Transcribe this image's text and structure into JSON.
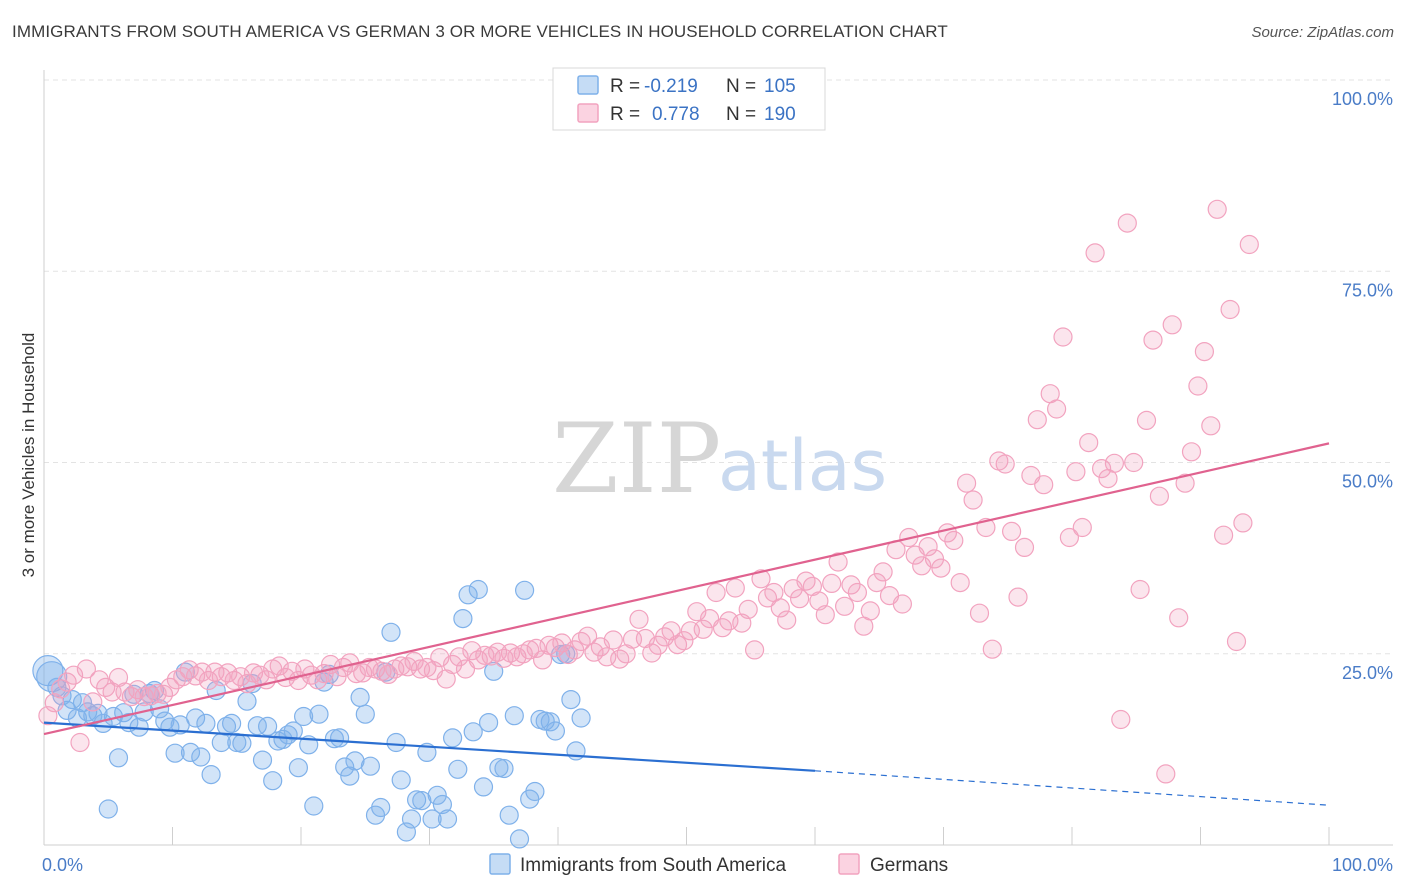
{
  "header": {
    "title": "IMMIGRANTS FROM SOUTH AMERICA VS GERMAN 3 OR MORE VEHICLES IN HOUSEHOLD CORRELATION CHART",
    "source": "Source: ZipAtlas.com"
  },
  "watermark": {
    "zip": "ZIP",
    "atlas": "atlas"
  },
  "legend": {
    "rows": [
      {
        "r_label": "R =",
        "r_value": "-0.219",
        "n_label": "N =",
        "n_value": "105",
        "color": "#7fb1ea"
      },
      {
        "r_label": "R =",
        "r_value": "0.778",
        "n_label": "N =",
        "n_value": "190",
        "color": "#f2a3bf"
      }
    ]
  },
  "chart_data": {
    "type": "scatter",
    "title": "IMMIGRANTS FROM SOUTH AMERICA VS GERMAN 3 OR MORE VEHICLES IN HOUSEHOLD CORRELATION CHART",
    "xlabel": "",
    "ylabel": "3 or more Vehicles in Household",
    "xlim": [
      0,
      100
    ],
    "ylim": [
      0,
      100
    ],
    "x_tick_labels": [
      "0.0%",
      "100.0%"
    ],
    "y_ticks": [
      25,
      50,
      75,
      100
    ],
    "y_tick_labels": [
      "25.0%",
      "50.0%",
      "75.0%",
      "100.0%"
    ],
    "grid": true,
    "legend_position": "top-center",
    "series": [
      {
        "name": "Immigrants from South America",
        "color": "#7fb1ea",
        "line_color": "#2b6fd1",
        "trend": {
          "x0": 0,
          "y0": 16.0,
          "x1": 60,
          "y1": 9.7,
          "dash_to_x": 100,
          "dash_to_y": 5.2
        },
        "points": [
          [
            0.3,
            22.8
          ],
          [
            0.6,
            22.0
          ],
          [
            1.0,
            20.6
          ],
          [
            1.4,
            19.5
          ],
          [
            1.8,
            17.6
          ],
          [
            2.2,
            19.0
          ],
          [
            2.6,
            16.6
          ],
          [
            3.0,
            18.6
          ],
          [
            3.4,
            17.4
          ],
          [
            3.8,
            16.9
          ],
          [
            4.2,
            17.2
          ],
          [
            4.6,
            15.9
          ],
          [
            5.0,
            4.7
          ],
          [
            5.4,
            16.8
          ],
          [
            5.8,
            11.4
          ],
          [
            6.2,
            17.3
          ],
          [
            6.6,
            16.0
          ],
          [
            7.0,
            19.7
          ],
          [
            7.4,
            15.4
          ],
          [
            7.8,
            17.4
          ],
          [
            8.2,
            19.8
          ],
          [
            8.6,
            20.2
          ],
          [
            9.0,
            17.8
          ],
          [
            9.4,
            16.2
          ],
          [
            9.8,
            15.4
          ],
          [
            10.2,
            12.0
          ],
          [
            10.6,
            15.7
          ],
          [
            11.0,
            22.6
          ],
          [
            11.4,
            12.1
          ],
          [
            11.8,
            16.6
          ],
          [
            12.2,
            11.5
          ],
          [
            12.6,
            15.9
          ],
          [
            13.0,
            9.2
          ],
          [
            13.4,
            20.2
          ],
          [
            13.8,
            13.4
          ],
          [
            14.2,
            15.5
          ],
          [
            14.6,
            15.9
          ],
          [
            15.0,
            13.4
          ],
          [
            15.4,
            13.3
          ],
          [
            15.8,
            18.8
          ],
          [
            16.2,
            21.1
          ],
          [
            16.6,
            15.6
          ],
          [
            17.0,
            11.1
          ],
          [
            17.4,
            15.5
          ],
          [
            17.8,
            8.4
          ],
          [
            18.2,
            13.6
          ],
          [
            18.6,
            13.8
          ],
          [
            19.0,
            14.4
          ],
          [
            19.4,
            14.9
          ],
          [
            19.8,
            10.1
          ],
          [
            20.2,
            16.8
          ],
          [
            20.6,
            13.1
          ],
          [
            21.0,
            5.1
          ],
          [
            21.4,
            17.1
          ],
          [
            21.8,
            21.3
          ],
          [
            22.2,
            22.3
          ],
          [
            22.6,
            13.9
          ],
          [
            23.0,
            14.0
          ],
          [
            23.4,
            10.2
          ],
          [
            23.8,
            9.0
          ],
          [
            24.2,
            11.0
          ],
          [
            24.6,
            19.3
          ],
          [
            25.0,
            17.1
          ],
          [
            25.4,
            10.3
          ],
          [
            25.8,
            3.9
          ],
          [
            26.2,
            4.9
          ],
          [
            26.6,
            22.6
          ],
          [
            27.0,
            27.8
          ],
          [
            27.4,
            13.4
          ],
          [
            27.8,
            8.5
          ],
          [
            28.2,
            1.7
          ],
          [
            28.6,
            3.4
          ],
          [
            29.0,
            5.9
          ],
          [
            29.4,
            5.8
          ],
          [
            29.8,
            12.1
          ],
          [
            30.2,
            3.4
          ],
          [
            30.6,
            6.5
          ],
          [
            31.0,
            5.3
          ],
          [
            31.4,
            3.4
          ],
          [
            31.8,
            14.0
          ],
          [
            32.2,
            9.9
          ],
          [
            32.6,
            29.6
          ],
          [
            33.0,
            32.7
          ],
          [
            33.4,
            14.8
          ],
          [
            33.8,
            33.4
          ],
          [
            34.2,
            7.6
          ],
          [
            34.6,
            16.0
          ],
          [
            35.0,
            22.7
          ],
          [
            35.4,
            10.1
          ],
          [
            35.8,
            10.0
          ],
          [
            36.2,
            3.9
          ],
          [
            36.6,
            16.9
          ],
          [
            37.0,
            0.8
          ],
          [
            37.4,
            33.3
          ],
          [
            37.8,
            6.0
          ],
          [
            38.2,
            7.0
          ],
          [
            38.6,
            16.4
          ],
          [
            39.0,
            16.2
          ],
          [
            39.4,
            16.1
          ],
          [
            39.8,
            14.9
          ],
          [
            40.2,
            24.9
          ],
          [
            40.6,
            25.0
          ],
          [
            41.0,
            19.0
          ],
          [
            41.4,
            12.3
          ],
          [
            41.8,
            16.6
          ]
        ]
      },
      {
        "name": "Germans",
        "color": "#f2a3bf",
        "line_color": "#e0628f",
        "trend": {
          "x0": 0,
          "y0": 14.5,
          "x1": 100,
          "y1": 52.5
        },
        "points": [
          [
            0.3,
            16.9
          ],
          [
            0.8,
            18.6
          ],
          [
            1.3,
            20.4
          ],
          [
            1.8,
            21.3
          ],
          [
            2.3,
            22.2
          ],
          [
            2.8,
            13.4
          ],
          [
            3.3,
            23.0
          ],
          [
            3.8,
            18.7
          ],
          [
            4.3,
            21.6
          ],
          [
            4.8,
            20.6
          ],
          [
            5.3,
            20.0
          ],
          [
            5.8,
            21.9
          ],
          [
            6.3,
            20.0
          ],
          [
            6.8,
            19.4
          ],
          [
            7.3,
            20.3
          ],
          [
            7.8,
            19.4
          ],
          [
            8.3,
            19.5
          ],
          [
            8.8,
            19.8
          ],
          [
            9.3,
            19.7
          ],
          [
            9.8,
            20.6
          ],
          [
            10.3,
            21.6
          ],
          [
            10.8,
            22.0
          ],
          [
            11.3,
            22.9
          ],
          [
            11.8,
            22.1
          ],
          [
            12.3,
            22.6
          ],
          [
            12.8,
            21.5
          ],
          [
            13.3,
            22.6
          ],
          [
            13.8,
            22.0
          ],
          [
            14.3,
            22.5
          ],
          [
            14.8,
            21.5
          ],
          [
            15.3,
            22.0
          ],
          [
            15.8,
            21.1
          ],
          [
            16.3,
            22.5
          ],
          [
            16.8,
            22.2
          ],
          [
            17.3,
            21.6
          ],
          [
            17.8,
            23.0
          ],
          [
            18.3,
            23.4
          ],
          [
            18.8,
            21.9
          ],
          [
            19.3,
            22.7
          ],
          [
            19.8,
            21.5
          ],
          [
            20.3,
            23.0
          ],
          [
            20.8,
            22.2
          ],
          [
            21.3,
            21.6
          ],
          [
            21.8,
            22.4
          ],
          [
            22.3,
            23.6
          ],
          [
            22.8,
            22.0
          ],
          [
            23.3,
            23.2
          ],
          [
            23.8,
            23.8
          ],
          [
            24.3,
            22.4
          ],
          [
            24.8,
            22.5
          ],
          [
            25.3,
            23.2
          ],
          [
            25.8,
            23.0
          ],
          [
            26.3,
            22.7
          ],
          [
            26.8,
            22.3
          ],
          [
            27.3,
            23.0
          ],
          [
            27.8,
            23.4
          ],
          [
            28.3,
            23.3
          ],
          [
            28.8,
            24.0
          ],
          [
            29.3,
            23.0
          ],
          [
            29.8,
            23.2
          ],
          [
            30.3,
            22.8
          ],
          [
            30.8,
            24.5
          ],
          [
            31.3,
            21.7
          ],
          [
            31.8,
            23.6
          ],
          [
            32.3,
            24.6
          ],
          [
            32.8,
            23.0
          ],
          [
            33.3,
            25.4
          ],
          [
            33.8,
            24.2
          ],
          [
            34.3,
            24.8
          ],
          [
            34.8,
            24.7
          ],
          [
            35.3,
            25.2
          ],
          [
            35.8,
            24.4
          ],
          [
            36.3,
            25.1
          ],
          [
            36.8,
            24.6
          ],
          [
            37.3,
            25.0
          ],
          [
            37.8,
            25.5
          ],
          [
            38.3,
            25.7
          ],
          [
            38.8,
            24.2
          ],
          [
            39.3,
            26.1
          ],
          [
            39.8,
            25.8
          ],
          [
            40.3,
            26.4
          ],
          [
            40.8,
            24.9
          ],
          [
            41.3,
            25.5
          ],
          [
            41.8,
            26.6
          ],
          [
            42.3,
            27.3
          ],
          [
            42.8,
            25.2
          ],
          [
            43.3,
            25.9
          ],
          [
            43.8,
            24.6
          ],
          [
            44.3,
            26.8
          ],
          [
            44.8,
            24.3
          ],
          [
            45.3,
            25.0
          ],
          [
            45.8,
            26.9
          ],
          [
            46.3,
            29.5
          ],
          [
            46.8,
            27.0
          ],
          [
            47.3,
            25.1
          ],
          [
            47.8,
            26.1
          ],
          [
            48.3,
            27.2
          ],
          [
            48.8,
            28.0
          ],
          [
            49.3,
            26.2
          ],
          [
            49.8,
            26.7
          ],
          [
            50.3,
            28.0
          ],
          [
            50.8,
            30.5
          ],
          [
            51.3,
            28.2
          ],
          [
            51.8,
            29.6
          ],
          [
            52.3,
            33.0
          ],
          [
            52.8,
            28.4
          ],
          [
            53.3,
            29.3
          ],
          [
            53.8,
            33.6
          ],
          [
            54.3,
            29.0
          ],
          [
            54.8,
            30.8
          ],
          [
            55.3,
            25.5
          ],
          [
            55.8,
            34.8
          ],
          [
            56.3,
            32.3
          ],
          [
            56.8,
            33.0
          ],
          [
            57.3,
            31.0
          ],
          [
            57.8,
            29.4
          ],
          [
            58.3,
            33.5
          ],
          [
            58.8,
            32.2
          ],
          [
            59.3,
            34.5
          ],
          [
            59.8,
            33.8
          ],
          [
            60.3,
            31.9
          ],
          [
            60.8,
            30.1
          ],
          [
            61.3,
            34.2
          ],
          [
            61.8,
            37.0
          ],
          [
            62.3,
            31.2
          ],
          [
            62.8,
            34.0
          ],
          [
            63.3,
            33.0
          ],
          [
            63.8,
            28.6
          ],
          [
            64.3,
            30.6
          ],
          [
            64.8,
            34.3
          ],
          [
            65.3,
            35.7
          ],
          [
            65.8,
            32.6
          ],
          [
            66.3,
            38.6
          ],
          [
            66.8,
            31.5
          ],
          [
            67.3,
            40.2
          ],
          [
            67.8,
            37.9
          ],
          [
            68.3,
            36.5
          ],
          [
            68.8,
            39.0
          ],
          [
            69.3,
            37.4
          ],
          [
            69.8,
            36.2
          ],
          [
            70.3,
            40.8
          ],
          [
            70.8,
            39.8
          ],
          [
            71.3,
            34.3
          ],
          [
            71.8,
            47.3
          ],
          [
            72.3,
            45.1
          ],
          [
            72.8,
            30.3
          ],
          [
            73.3,
            41.5
          ],
          [
            73.8,
            25.6
          ],
          [
            74.3,
            50.2
          ],
          [
            74.8,
            49.8
          ],
          [
            75.3,
            41.0
          ],
          [
            75.8,
            32.4
          ],
          [
            76.3,
            38.9
          ],
          [
            76.8,
            48.3
          ],
          [
            77.3,
            55.6
          ],
          [
            77.8,
            47.1
          ],
          [
            78.3,
            59.0
          ],
          [
            78.8,
            57.0
          ],
          [
            79.3,
            66.4
          ],
          [
            79.8,
            40.2
          ],
          [
            80.3,
            48.8
          ],
          [
            80.8,
            41.5
          ],
          [
            81.3,
            52.6
          ],
          [
            81.8,
            77.4
          ],
          [
            82.3,
            49.2
          ],
          [
            82.8,
            47.9
          ],
          [
            83.3,
            49.9
          ],
          [
            83.8,
            16.4
          ],
          [
            84.3,
            81.3
          ],
          [
            84.8,
            50.0
          ],
          [
            85.3,
            33.4
          ],
          [
            85.8,
            55.5
          ],
          [
            86.3,
            66.0
          ],
          [
            86.8,
            45.6
          ],
          [
            87.3,
            9.3
          ],
          [
            87.8,
            68.0
          ],
          [
            88.3,
            29.7
          ],
          [
            88.8,
            47.3
          ],
          [
            89.3,
            51.4
          ],
          [
            89.8,
            60.0
          ],
          [
            90.3,
            64.5
          ],
          [
            90.8,
            54.8
          ],
          [
            91.3,
            83.1
          ],
          [
            91.8,
            40.5
          ],
          [
            92.3,
            70.0
          ],
          [
            92.8,
            26.6
          ],
          [
            93.3,
            42.1
          ],
          [
            93.8,
            78.5
          ]
        ]
      }
    ]
  },
  "bottom_legend": {
    "items": [
      {
        "label": "Immigrants from South America",
        "color": "#7fb1ea"
      },
      {
        "label": "Germans",
        "color": "#f2a3bf"
      }
    ]
  }
}
